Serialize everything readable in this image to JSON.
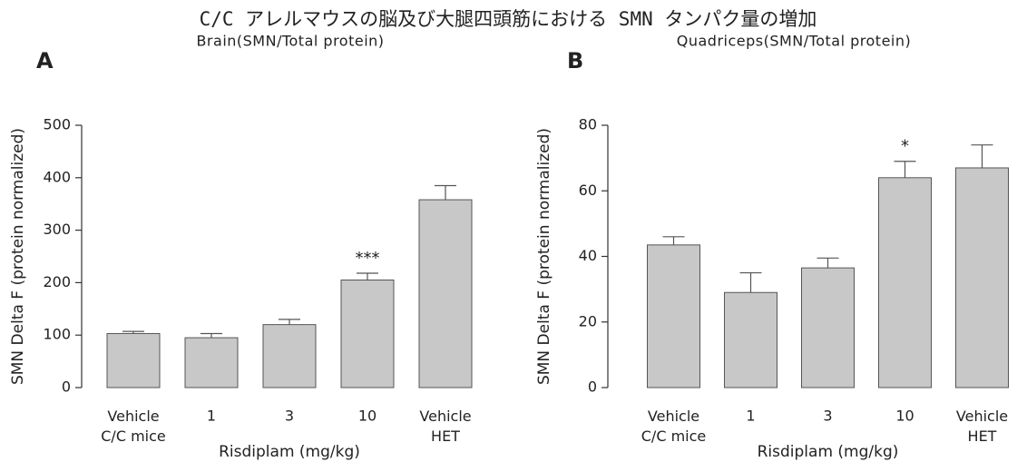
{
  "title": "C/C アレルマウスの脳及び大腿四頭筋における SMN タンパク量の増加",
  "chart_data": [
    {
      "type": "bar",
      "panel": "A",
      "title": "Brain(SMN/Total protein)",
      "y_label": "SMN Delta F (protein normalized)",
      "x_label": "Risdiplam (mg/kg)",
      "categories": [
        "Vehicle\nC/C mice",
        "1",
        "3",
        "10",
        "Vehicle\nHET"
      ],
      "values": [
        103,
        95,
        120,
        205,
        358
      ],
      "errors": [
        4,
        8,
        10,
        13,
        27
      ],
      "significance": [
        null,
        null,
        null,
        "***",
        null
      ],
      "color": "#c8c8c8",
      "ylim": [
        0,
        500
      ],
      "yticks": [
        0,
        100,
        200,
        300,
        400,
        500
      ]
    },
    {
      "type": "bar",
      "panel": "B",
      "title": "Quadriceps(SMN/Total protein)",
      "y_label": "SMN Delta F (protein normalized)",
      "x_label": "Risdiplam (mg/kg)",
      "categories": [
        "Vehicle\nC/C mice",
        "1",
        "3",
        "10",
        "Vehicle\nHET"
      ],
      "values": [
        43.5,
        29,
        36.5,
        64,
        67
      ],
      "errors": [
        2.5,
        6,
        3,
        5,
        7
      ],
      "significance": [
        null,
        null,
        null,
        "*",
        null
      ],
      "color": "#c8c8c8",
      "ylim": [
        0,
        80
      ],
      "yticks": [
        0,
        20,
        40,
        60,
        80
      ]
    }
  ]
}
